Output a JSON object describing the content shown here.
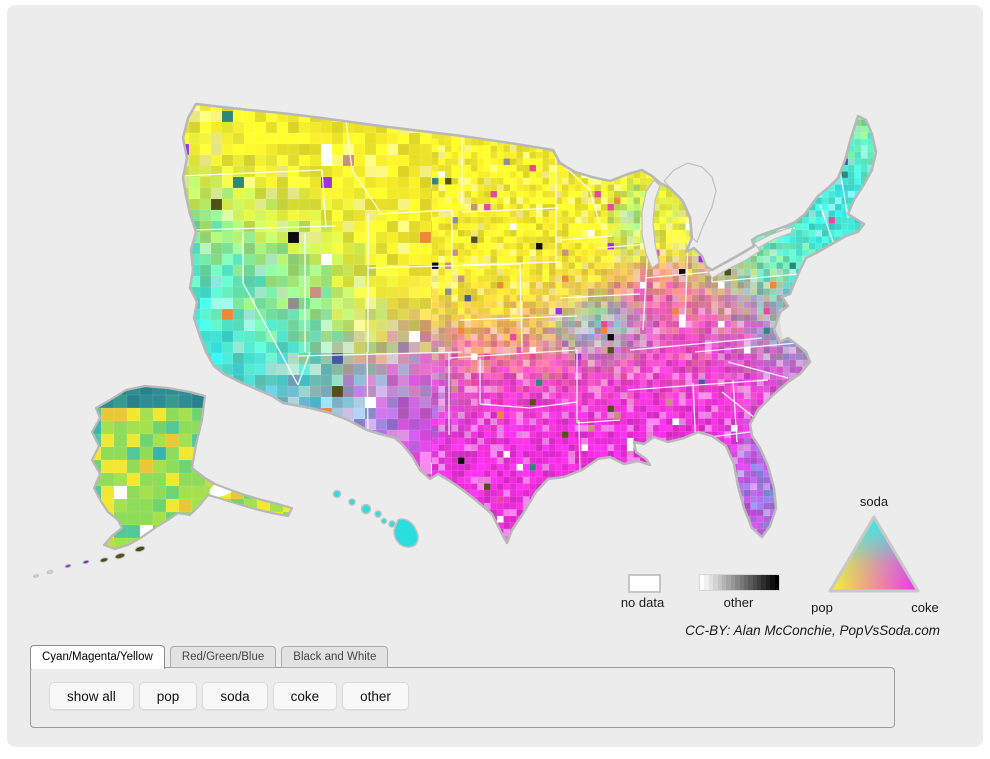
{
  "window": {
    "background": "#ffffff",
    "canvas_background": "#ececec"
  },
  "map": {
    "name": "US county-level pop vs soda choropleth",
    "colors": {
      "pop_yellow": "#f3e928",
      "soda_cyan": "#28dee6",
      "coke_magenta": "#e828da",
      "outline_gray": "#b8b8b8",
      "state_border_white": "#ffffff",
      "water_gray": "#ececec",
      "no_data_white": "#ffffff",
      "other_black": "#0d0d0d"
    }
  },
  "legend": {
    "no_data_label": "no data",
    "other_label": "other",
    "other_gradient_start": "#ffffff",
    "other_gradient_end": "#000000",
    "triangle_top_label": "soda",
    "triangle_bottom_left_label": "pop",
    "triangle_bottom_right_label": "coke"
  },
  "attribution": "CC-BY: Alan McConchie, PopVsSoda.com",
  "tabs": [
    {
      "label": "Cyan/Magenta/Yellow",
      "active": true
    },
    {
      "label": "Red/Green/Blue",
      "active": false
    },
    {
      "label": "Black and White",
      "active": false
    }
  ],
  "filter_buttons": [
    "show all",
    "pop",
    "soda",
    "coke",
    "other"
  ]
}
